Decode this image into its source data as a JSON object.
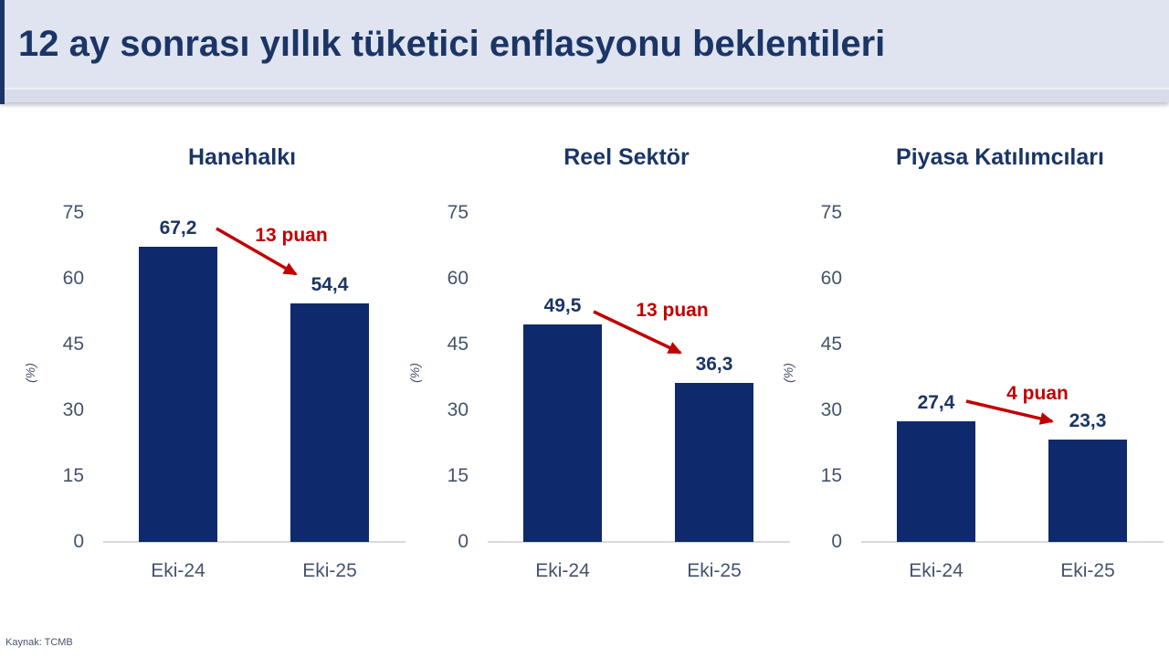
{
  "header": {
    "title": "12 ay sonrası yıllık tüketici enflasyonu beklentileri"
  },
  "source": "Kaynak: TCMB",
  "ticks": [
    "75",
    "60",
    "45",
    "30",
    "15",
    "0"
  ],
  "chart_data": [
    {
      "type": "bar",
      "title": "Hanehalkı",
      "categories": [
        "Eki-24",
        "Eki-25"
      ],
      "values": [
        67.2,
        54.4
      ],
      "value_labels": [
        "67,2",
        "54,4"
      ],
      "annotation": "13 puan",
      "ylabel": "(%)",
      "yticks": [
        0,
        15,
        30,
        45,
        60,
        75
      ],
      "ylim": [
        0,
        75
      ],
      "grid": false,
      "legend": "none"
    },
    {
      "type": "bar",
      "title": "Reel Sektör",
      "categories": [
        "Eki-24",
        "Eki-25"
      ],
      "values": [
        49.5,
        36.3
      ],
      "value_labels": [
        "49,5",
        "36,3"
      ],
      "annotation": "13 puan",
      "ylabel": "(%)",
      "yticks": [
        0,
        15,
        30,
        45,
        60,
        75
      ],
      "ylim": [
        0,
        75
      ],
      "grid": false,
      "legend": "none"
    },
    {
      "type": "bar",
      "title": "Piyasa Katılımcıları",
      "categories": [
        "Eki-24",
        "Eki-25"
      ],
      "values": [
        27.4,
        23.3
      ],
      "value_labels": [
        "27,4",
        "23,3"
      ],
      "annotation": "4 puan",
      "ylabel": "(%)",
      "yticks": [
        0,
        15,
        30,
        45,
        60,
        75
      ],
      "ylim": [
        0,
        75
      ],
      "grid": false,
      "legend": "none"
    }
  ],
  "colors": {
    "bar": "#0e2a6c",
    "navy": "#1a3566",
    "red": "#c00000",
    "axis_text": "#45536b",
    "header_bg": "#dfe4f0"
  }
}
